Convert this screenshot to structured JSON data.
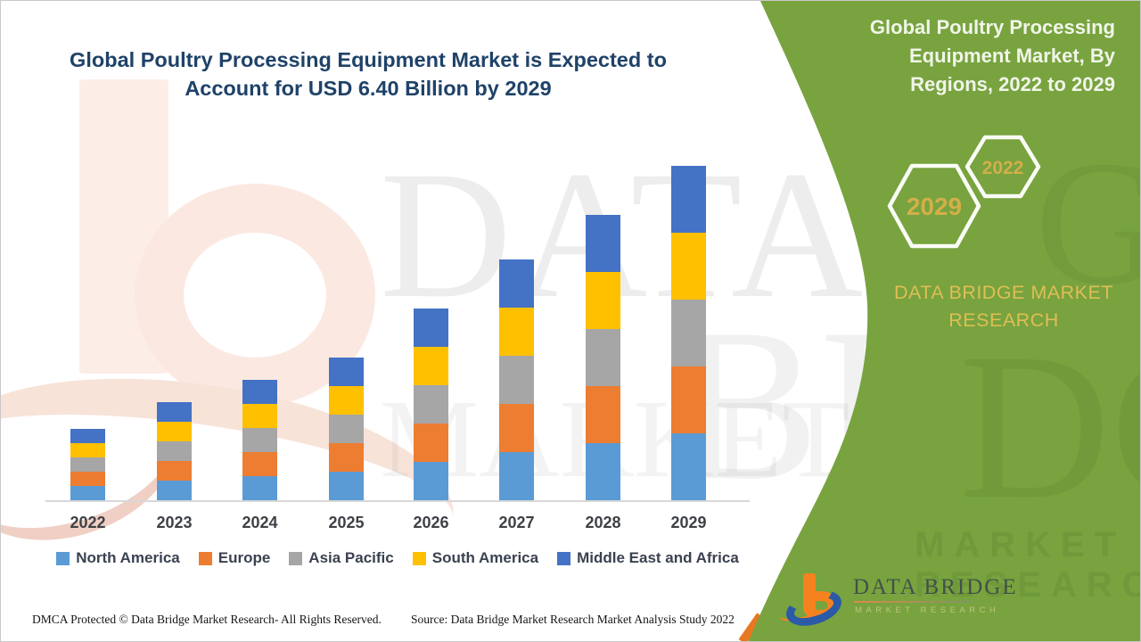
{
  "slide": {
    "main_title": "Global Poultry Processing Equipment Market is Expected to Account for USD 6.40 Billion by 2029",
    "panel_title": "Global Poultry Processing Equipment Market, By Regions, 2022 to 2029",
    "hexagons": {
      "large_year": "2029",
      "small_year": "2022"
    },
    "brand_heading": "DATA BRIDGE MARKET RESEARCH",
    "logo": {
      "name": "DATA BRIDGE",
      "subtitle": "MARKET RESEARCH"
    },
    "footer": {
      "dmca": "DMCA Protected © Data Bridge Market Research- All Rights Reserved.",
      "source": "Source: Data Bridge Market Research Market Analysis Study 2022"
    },
    "watermarks": {
      "row1": "DATA B",
      "row2": "BR",
      "row2b": "MARKET",
      "green_letters": "DGE",
      "green_sub": "MARKET RESEARCH",
      "green_top": "GE"
    },
    "colors": {
      "panel_green": "#78a33f",
      "title_blue": "#1f4268",
      "gold_text": "#dfbe55",
      "hex_year_gold": "#d2af4a",
      "hex_stroke": "#fafcf5",
      "logo_orange": "#f5821f",
      "logo_blue": "#2b5aa7",
      "axis_line": "#d8d8d8"
    }
  },
  "chart_data": {
    "type": "bar",
    "stacked": true,
    "title": "Global Poultry Processing Equipment Market is Expected to Account for USD 6.40 Billion by 2029",
    "unit": "USD Billion",
    "categories": [
      "2022",
      "2023",
      "2024",
      "2025",
      "2026",
      "2027",
      "2028",
      "2029"
    ],
    "series": [
      {
        "name": "North America",
        "color": "#5b9bd5",
        "values": [
          0.27,
          0.37,
          0.46,
          0.55,
          0.73,
          0.91,
          1.09,
          1.28
        ]
      },
      {
        "name": "Europe",
        "color": "#ed7d31",
        "values": [
          0.27,
          0.37,
          0.46,
          0.55,
          0.73,
          0.91,
          1.09,
          1.28
        ]
      },
      {
        "name": "Asia Pacific",
        "color": "#a6a6a6",
        "values": [
          0.27,
          0.37,
          0.46,
          0.55,
          0.73,
          0.91,
          1.09,
          1.28
        ]
      },
      {
        "name": "South America",
        "color": "#ffc000",
        "values": [
          0.27,
          0.37,
          0.46,
          0.55,
          0.73,
          0.91,
          1.09,
          1.28
        ]
      },
      {
        "name": "Middle East and Africa",
        "color": "#4472c4",
        "values": [
          0.27,
          0.37,
          0.46,
          0.55,
          0.73,
          0.91,
          1.09,
          1.28
        ]
      }
    ],
    "totals": [
      1.36,
      1.83,
      2.29,
      2.75,
      3.65,
      4.55,
      5.47,
      6.4
    ],
    "ylim": [
      0,
      6.4
    ],
    "grid": false,
    "legend_position": "bottom",
    "xlabel": "",
    "ylabel": ""
  }
}
